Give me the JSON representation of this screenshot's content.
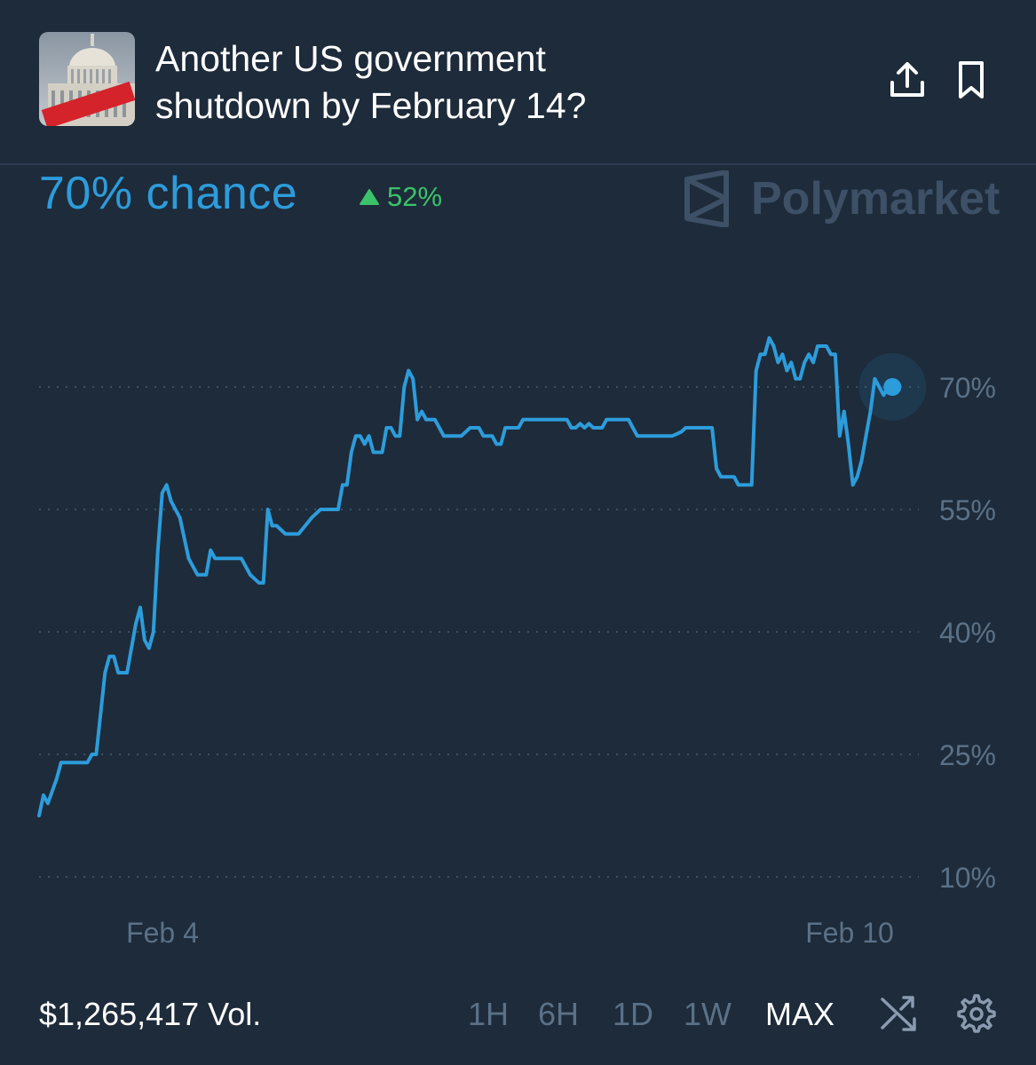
{
  "header": {
    "title": "Another US government\nshutdown by February 14?",
    "thumbnail_banner": "CLOSED",
    "share_icon": "share-icon",
    "bookmark_icon": "bookmark-icon"
  },
  "summary": {
    "chance_label": "70% chance",
    "change_value": "52%",
    "change_direction": "up",
    "brand": "Polymarket"
  },
  "colors": {
    "background": "#1d2b3a",
    "line": "#2d9cdb",
    "positive": "#3cc26b",
    "muted_text": "#5b7187"
  },
  "chart_data": {
    "type": "line",
    "title": "",
    "xlabel": "",
    "ylabel": "",
    "ylim": [
      10,
      70
    ],
    "y_ticks": [
      "10%",
      "25%",
      "40%",
      "55%",
      "70%"
    ],
    "x_ticks": [
      "Feb 4",
      "Feb 10"
    ],
    "grid": "dotted horizontal",
    "series": [
      {
        "points": [
          [
            0,
            17.5
          ],
          [
            0.5,
            20
          ],
          [
            1,
            19
          ],
          [
            2,
            22
          ],
          [
            2.5,
            24
          ],
          [
            5.5,
            24
          ],
          [
            6,
            25
          ],
          [
            6.5,
            25
          ],
          [
            7.5,
            35
          ],
          [
            8,
            37
          ],
          [
            8.5,
            37
          ],
          [
            9,
            35
          ],
          [
            10,
            35
          ],
          [
            11,
            41
          ],
          [
            11.5,
            43
          ],
          [
            12,
            39
          ],
          [
            12.5,
            38
          ],
          [
            13,
            40
          ],
          [
            13.5,
            50
          ],
          [
            14,
            57
          ],
          [
            14.5,
            58
          ],
          [
            15,
            56
          ],
          [
            16,
            54
          ],
          [
            17,
            49
          ],
          [
            18,
            47
          ],
          [
            19,
            47
          ],
          [
            19.5,
            50
          ],
          [
            20,
            49
          ],
          [
            23,
            49
          ],
          [
            24,
            47
          ],
          [
            25,
            46
          ],
          [
            25.5,
            46
          ],
          [
            26,
            55
          ],
          [
            26.5,
            53
          ],
          [
            27,
            53
          ],
          [
            28,
            52
          ],
          [
            29.5,
            52
          ],
          [
            31,
            54
          ],
          [
            32,
            55
          ],
          [
            34,
            55
          ],
          [
            34.5,
            58
          ],
          [
            35,
            58
          ],
          [
            35.5,
            62
          ],
          [
            36,
            64
          ],
          [
            36.5,
            64
          ],
          [
            37,
            63
          ],
          [
            37.5,
            64
          ],
          [
            38,
            62
          ],
          [
            39,
            62
          ],
          [
            39.5,
            65
          ],
          [
            40,
            65
          ],
          [
            40.5,
            64
          ],
          [
            41,
            64
          ],
          [
            41.5,
            70
          ],
          [
            42,
            72
          ],
          [
            42.5,
            71
          ],
          [
            43,
            66
          ],
          [
            43.5,
            67
          ],
          [
            44,
            66
          ],
          [
            45,
            66
          ],
          [
            45.5,
            65
          ],
          [
            46,
            64
          ],
          [
            48,
            64
          ],
          [
            49,
            65
          ],
          [
            50,
            65
          ],
          [
            50.5,
            64
          ],
          [
            51.5,
            64
          ],
          [
            52,
            63
          ],
          [
            52.5,
            63
          ],
          [
            53,
            65
          ],
          [
            54,
            65
          ],
          [
            54.5,
            65
          ],
          [
            55,
            66
          ],
          [
            60,
            66
          ],
          [
            60.5,
            65
          ],
          [
            61,
            65
          ],
          [
            61.5,
            65.5
          ],
          [
            62,
            65
          ],
          [
            62.5,
            65.5
          ],
          [
            63,
            65
          ],
          [
            64,
            65
          ],
          [
            64.5,
            66
          ],
          [
            67,
            66
          ],
          [
            67.5,
            65
          ],
          [
            68,
            64
          ],
          [
            72,
            64
          ],
          [
            73,
            64.5
          ],
          [
            73.5,
            65
          ],
          [
            76.5,
            65
          ],
          [
            77,
            60
          ],
          [
            77.5,
            59
          ],
          [
            79,
            59
          ],
          [
            79.5,
            58
          ],
          [
            81,
            58
          ],
          [
            81.5,
            72
          ],
          [
            82,
            74
          ],
          [
            82.5,
            74
          ],
          [
            83,
            76
          ],
          [
            83.5,
            75
          ],
          [
            84,
            73
          ],
          [
            84.5,
            74
          ],
          [
            85,
            72
          ],
          [
            85.5,
            73
          ],
          [
            86,
            71
          ],
          [
            86.5,
            71
          ],
          [
            87,
            73
          ],
          [
            87.5,
            74
          ],
          [
            88,
            73
          ],
          [
            88.5,
            75
          ],
          [
            89.5,
            75
          ],
          [
            90,
            74
          ],
          [
            90.5,
            74
          ],
          [
            91,
            64
          ],
          [
            91.5,
            67
          ],
          [
            92,
            63
          ],
          [
            92.5,
            58
          ],
          [
            93,
            59
          ],
          [
            93.5,
            61
          ],
          [
            94,
            64
          ],
          [
            94.5,
            67
          ],
          [
            95,
            71
          ],
          [
            95.5,
            70
          ],
          [
            96,
            69
          ],
          [
            96.5,
            70
          ],
          [
            97,
            70
          ]
        ]
      }
    ]
  },
  "footer": {
    "volume": "$1,265,417 Vol.",
    "ranges": [
      "1H",
      "6H",
      "1D",
      "1W",
      "MAX"
    ],
    "active_range": "MAX",
    "shuffle_icon": "shuffle-icon",
    "settings_icon": "gear-icon"
  }
}
